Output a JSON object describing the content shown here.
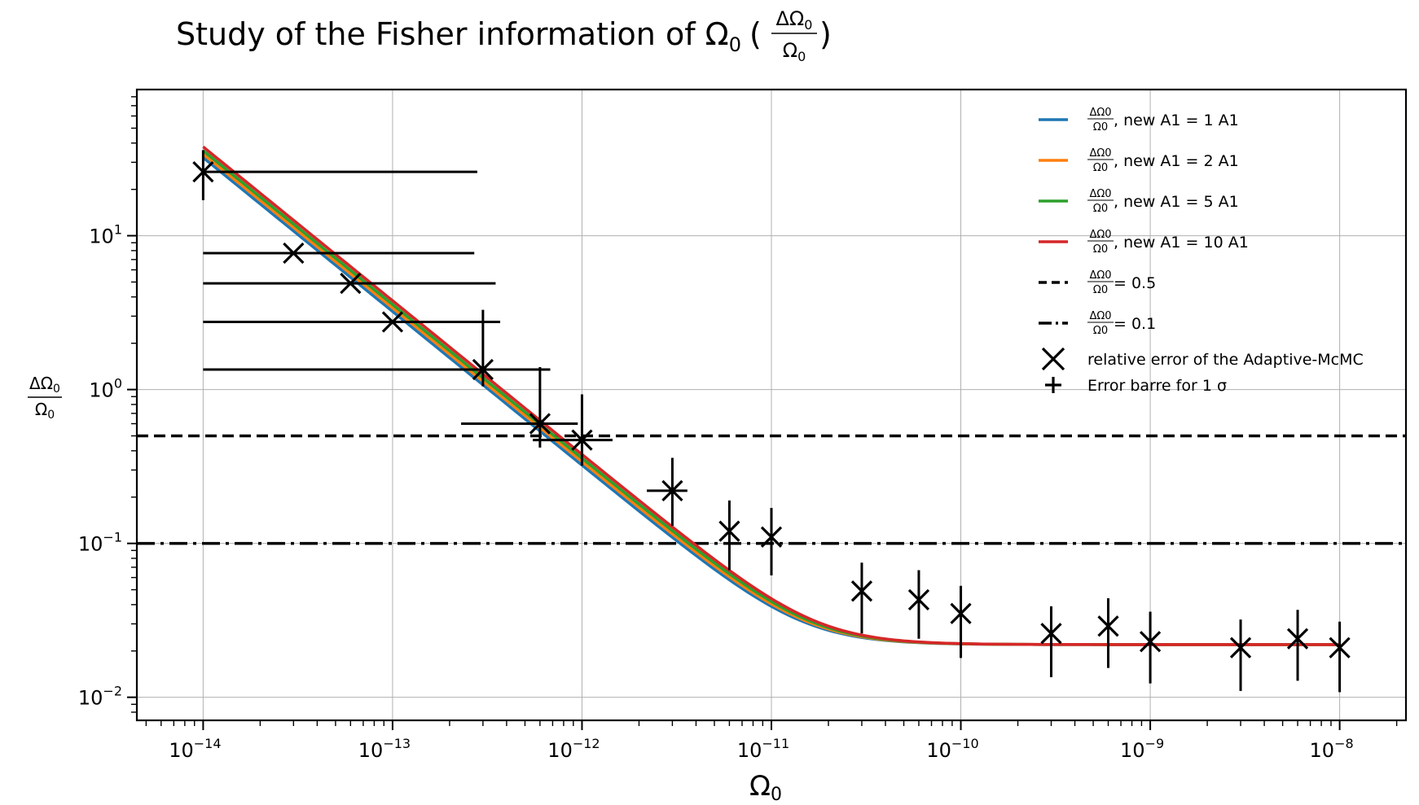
{
  "chart_data": {
    "type": "line",
    "title_prefix": "Study of the Fisher information of Ω",
    "title_sub": "0",
    "title_frac_num": "ΔΩ",
    "title_frac_num_sub": "0",
    "title_frac_den": "Ω",
    "title_frac_den_sub": "0",
    "xlabel": "Ω",
    "xlabel_sub": "0",
    "ylabel_num": "ΔΩ",
    "ylabel_den": "Ω",
    "ylabel_sub": "0",
    "xscale": "log",
    "yscale": "log",
    "xlim_exp": [
      -14.35,
      -7.65
    ],
    "ylim_exp": [
      -2.15,
      1.95
    ],
    "grid": true,
    "legend_position": "upper-right",
    "x_ticks": [
      {
        "base": "10",
        "exp": "−14",
        "value_exp": -14
      },
      {
        "base": "10",
        "exp": "−13",
        "value_exp": -13
      },
      {
        "base": "10",
        "exp": "−12",
        "value_exp": -12
      },
      {
        "base": "10",
        "exp": "−11",
        "value_exp": -11
      },
      {
        "base": "10",
        "exp": "−10",
        "value_exp": -10
      },
      {
        "base": "10",
        "exp": "−9",
        "value_exp": -9
      },
      {
        "base": "10",
        "exp": "−8",
        "value_exp": -8
      }
    ],
    "y_ticks": [
      {
        "base": "10",
        "exp": "1",
        "value_exp": 1
      },
      {
        "base": "10",
        "exp": "0",
        "value_exp": 0
      },
      {
        "base": "10",
        "exp": "−1",
        "value_exp": -1
      },
      {
        "base": "10",
        "exp": "−2",
        "value_exp": -2
      }
    ],
    "series": [
      {
        "name_prefix": "ΔΩ",
        "name_den": "Ω",
        "name_suffix": ", new A1 = 1 A1",
        "color": "#1f77b4",
        "scale": 0.92
      },
      {
        "name_prefix": "ΔΩ",
        "name_den": "Ω",
        "name_suffix": ", new A1 = 2 A1",
        "color": "#ff7f0e",
        "scale": 0.97
      },
      {
        "name_prefix": "ΔΩ",
        "name_den": "Ω",
        "name_suffix": ", new A1 = 5 A1",
        "color": "#2ca02c",
        "scale": 1.02
      },
      {
        "name_prefix": "ΔΩ",
        "name_den": "Ω",
        "name_suffix": ", new A1 = 10 A1",
        "color": "#d62728",
        "scale": 1.08
      }
    ],
    "model": {
      "a": 3.5e-13,
      "b": 0.022,
      "x_start": 1e-14,
      "x_end": 1e-08
    },
    "hlines": [
      {
        "label_suffix": " = 0.5",
        "y": 0.5,
        "style": "dashed",
        "color": "#000000"
      },
      {
        "label_suffix": " = 0.1",
        "y": 0.1,
        "style": "dashdot",
        "color": "#000000"
      }
    ],
    "points_label": "relative error of the Adaptive-McMC",
    "errorbar_label": "Error barre for 1 σ",
    "points": [
      {
        "x": 1e-14,
        "y": 26,
        "ylo": 17,
        "yhi": 36,
        "xlo": 1e-14,
        "xhi": 2.8e-13
      },
      {
        "x": 3e-14,
        "y": 7.7,
        "ylo": 7.7,
        "yhi": 7.7,
        "xlo": 1e-14,
        "xhi": 2.7e-13
      },
      {
        "x": 6e-14,
        "y": 4.9,
        "ylo": 4.9,
        "yhi": 4.9,
        "xlo": 1e-14,
        "xhi": 3.5e-13
      },
      {
        "x": 1e-13,
        "y": 2.75,
        "ylo": 2.75,
        "yhi": 2.75,
        "xlo": 1e-14,
        "xhi": 3.7e-13
      },
      {
        "x": 3e-13,
        "y": 1.35,
        "ylo": 1.05,
        "yhi": 3.3,
        "xlo": 1e-14,
        "xhi": 6.8e-13
      },
      {
        "x": 6e-13,
        "y": 0.6,
        "ylo": 0.42,
        "yhi": 1.4,
        "xlo": 2.3e-13,
        "xhi": 9.5e-13
      },
      {
        "x": 1e-12,
        "y": 0.47,
        "ylo": 0.32,
        "yhi": 0.93,
        "xlo": 5.5e-13,
        "xhi": 1.45e-12
      },
      {
        "x": 3e-12,
        "y": 0.22,
        "ylo": 0.13,
        "yhi": 0.36,
        "xlo": 2.2e-12,
        "xhi": 3.6e-12
      },
      {
        "x": 6e-12,
        "y": 0.12,
        "ylo": 0.067,
        "yhi": 0.19,
        "xlo": 6e-12,
        "xhi": 6e-12
      },
      {
        "x": 1e-11,
        "y": 0.11,
        "ylo": 0.062,
        "yhi": 0.17,
        "xlo": 1e-11,
        "xhi": 1e-11
      },
      {
        "x": 3e-11,
        "y": 0.049,
        "ylo": 0.026,
        "yhi": 0.075,
        "xlo": 3e-11,
        "xhi": 3e-11
      },
      {
        "x": 6e-11,
        "y": 0.043,
        "ylo": 0.024,
        "yhi": 0.067,
        "xlo": 6e-11,
        "xhi": 6e-11
      },
      {
        "x": 1e-10,
        "y": 0.035,
        "ylo": 0.018,
        "yhi": 0.053,
        "xlo": 1e-10,
        "xhi": 1e-10
      },
      {
        "x": 3e-10,
        "y": 0.026,
        "ylo": 0.0135,
        "yhi": 0.039,
        "xlo": 3e-10,
        "xhi": 3e-10
      },
      {
        "x": 6e-10,
        "y": 0.029,
        "ylo": 0.0155,
        "yhi": 0.044,
        "xlo": 6e-10,
        "xhi": 6e-10
      },
      {
        "x": 1e-09,
        "y": 0.023,
        "ylo": 0.0123,
        "yhi": 0.036,
        "xlo": 1e-09,
        "xhi": 1e-09
      },
      {
        "x": 3e-09,
        "y": 0.021,
        "ylo": 0.011,
        "yhi": 0.032,
        "xlo": 3e-09,
        "xhi": 3e-09
      },
      {
        "x": 6e-09,
        "y": 0.024,
        "ylo": 0.0128,
        "yhi": 0.037,
        "xlo": 6e-09,
        "xhi": 6e-09
      },
      {
        "x": 1e-08,
        "y": 0.021,
        "ylo": 0.0108,
        "yhi": 0.031,
        "xlo": 1e-08,
        "xhi": 1e-08
      }
    ]
  }
}
